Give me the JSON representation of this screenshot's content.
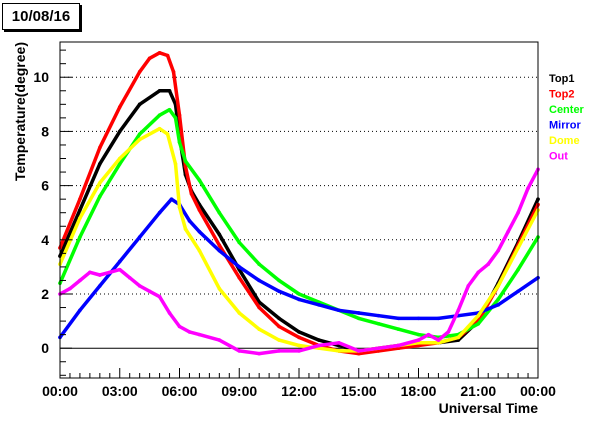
{
  "chart_data": {
    "type": "scatter",
    "title": "10/08/16",
    "xlabel": "Universal Time",
    "ylabel": "Temperature(degree)",
    "xlim": [
      0,
      24
    ],
    "ylim": [
      -1.1,
      11.3
    ],
    "x_ticks": [
      {
        "x": 0,
        "label": "00:00"
      },
      {
        "x": 3,
        "label": "03:00"
      },
      {
        "x": 6,
        "label": "06:00"
      },
      {
        "x": 9,
        "label": "09:00"
      },
      {
        "x": 12,
        "label": "12:00"
      },
      {
        "x": 15,
        "label": "15:00"
      },
      {
        "x": 18,
        "label": "18:00"
      },
      {
        "x": 21,
        "label": "21:00"
      },
      {
        "x": 24,
        "label": "00:00"
      }
    ],
    "y_ticks": [
      {
        "y": 0,
        "label": "0"
      },
      {
        "y": 2,
        "label": "2"
      },
      {
        "y": 4,
        "label": "4"
      },
      {
        "y": 6,
        "label": "6"
      },
      {
        "y": 8,
        "label": "8"
      },
      {
        "y": 10,
        "label": "10"
      }
    ],
    "grid": "horizontal dotted",
    "legend_position": "right",
    "series": [
      {
        "name": "Top1",
        "color": "#000000",
        "x": [
          0,
          1,
          2,
          3,
          4,
          5,
          5.5,
          5.8,
          6.0,
          6.3,
          6.6,
          7,
          8,
          9,
          10,
          11,
          12,
          13,
          14,
          15,
          16,
          17,
          18,
          19,
          20,
          21,
          22,
          23,
          24
        ],
        "y": [
          3.4,
          5.1,
          6.8,
          8.0,
          9.0,
          9.5,
          9.5,
          9.0,
          7.8,
          6.4,
          5.8,
          5.3,
          4.2,
          2.9,
          1.7,
          1.1,
          0.6,
          0.3,
          0.1,
          -0.1,
          0.0,
          0.1,
          0.2,
          0.2,
          0.3,
          1.0,
          2.4,
          3.9,
          5.5
        ]
      },
      {
        "name": "Top2",
        "color": "#ff0000",
        "x": [
          0,
          1,
          2,
          3,
          4,
          4.5,
          5,
          5.4,
          5.7,
          6.0,
          6.3,
          6.6,
          7,
          8,
          9,
          10,
          11,
          12,
          13,
          14,
          15,
          16,
          17,
          18,
          19,
          20,
          21,
          22,
          23,
          24
        ],
        "y": [
          3.7,
          5.5,
          7.4,
          8.9,
          10.2,
          10.7,
          10.9,
          10.8,
          10.2,
          8.6,
          6.7,
          5.7,
          5.1,
          3.8,
          2.6,
          1.5,
          0.8,
          0.4,
          0.1,
          -0.1,
          -0.2,
          -0.1,
          0.0,
          0.1,
          0.2,
          0.4,
          1.0,
          2.3,
          3.8,
          5.3
        ]
      },
      {
        "name": "Center",
        "color": "#00ff00",
        "x": [
          0,
          1,
          2,
          3,
          4,
          5,
          5.5,
          5.8,
          6.0,
          6.3,
          7,
          8,
          9,
          10,
          11,
          12,
          13,
          14,
          15,
          16,
          17,
          18,
          19,
          20,
          21,
          22,
          23,
          24
        ],
        "y": [
          2.4,
          4.1,
          5.6,
          6.8,
          7.9,
          8.6,
          8.8,
          8.5,
          7.6,
          6.9,
          6.2,
          5.0,
          3.9,
          3.1,
          2.5,
          2.0,
          1.7,
          1.4,
          1.1,
          0.9,
          0.7,
          0.5,
          0.4,
          0.5,
          0.9,
          1.8,
          2.9,
          4.1
        ]
      },
      {
        "name": "Mirror",
        "color": "#0000ff",
        "x": [
          0,
          1,
          2,
          3,
          4,
          5,
          5.6,
          6.0,
          6.5,
          7,
          8,
          9,
          10,
          11,
          12,
          13,
          14,
          15,
          16,
          17,
          18,
          19,
          20,
          21,
          22,
          23,
          24
        ],
        "y": [
          0.4,
          1.4,
          2.3,
          3.2,
          4.1,
          5.0,
          5.5,
          5.3,
          4.7,
          4.3,
          3.6,
          3.0,
          2.5,
          2.1,
          1.8,
          1.6,
          1.4,
          1.3,
          1.2,
          1.1,
          1.1,
          1.1,
          1.2,
          1.3,
          1.6,
          2.1,
          2.6
        ]
      },
      {
        "name": "Dome",
        "color": "#ffff00",
        "x": [
          0,
          1,
          2,
          3,
          4,
          5,
          5.4,
          5.8,
          6.0,
          6.3,
          7,
          8,
          9,
          10,
          11,
          12,
          13,
          14,
          15,
          16,
          17,
          18,
          19,
          20,
          21,
          22,
          23,
          24
        ],
        "y": [
          3.1,
          4.8,
          6.1,
          7.0,
          7.7,
          8.1,
          7.9,
          6.8,
          5.2,
          4.4,
          3.6,
          2.2,
          1.3,
          0.7,
          0.3,
          0.1,
          0.0,
          -0.1,
          -0.1,
          0.0,
          0.1,
          0.2,
          0.2,
          0.4,
          1.2,
          2.3,
          3.7,
          5.1
        ]
      },
      {
        "name": "Out",
        "color": "#ff00ff",
        "x": [
          0,
          0.5,
          1,
          1.5,
          2,
          2.5,
          3,
          3.5,
          4,
          4.5,
          5,
          5.5,
          6,
          6.5,
          7,
          8,
          9,
          10,
          11,
          12,
          13,
          14,
          15,
          16,
          17,
          18,
          18.5,
          19,
          19.5,
          20,
          20.5,
          21,
          21.5,
          22,
          22.5,
          23,
          23.5,
          24
        ],
        "y": [
          2.0,
          2.2,
          2.5,
          2.8,
          2.7,
          2.8,
          2.9,
          2.6,
          2.3,
          2.1,
          1.9,
          1.3,
          0.8,
          0.6,
          0.5,
          0.3,
          -0.1,
          -0.2,
          -0.1,
          -0.1,
          0.1,
          0.2,
          -0.1,
          0.0,
          0.1,
          0.3,
          0.5,
          0.3,
          0.6,
          1.4,
          2.3,
          2.8,
          3.1,
          3.6,
          4.3,
          5.0,
          5.9,
          6.6
        ]
      }
    ]
  }
}
